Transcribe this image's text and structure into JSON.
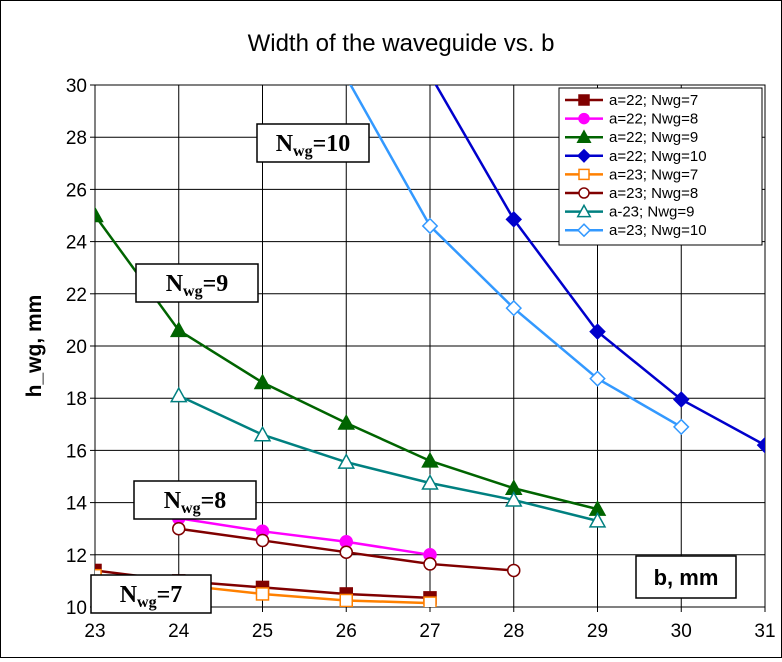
{
  "chart_data": {
    "type": "line",
    "title": "Width of the waveguide vs. b",
    "xlabel": "b, mm",
    "ylabel": "h_wg, mm",
    "xlim": [
      23,
      31
    ],
    "ylim": [
      10,
      30
    ],
    "x_ticks": [
      "23",
      "24",
      "25",
      "26",
      "27",
      "28",
      "29",
      "30",
      "31"
    ],
    "y_ticks": [
      "10",
      "12",
      "14",
      "16",
      "18",
      "20",
      "22",
      "24",
      "26",
      "28",
      "30"
    ],
    "grid": true,
    "legend_position": "top-right",
    "series": [
      {
        "name": "a=22; Nwg=7",
        "color": "#800000",
        "marker": "square",
        "filled": true,
        "x": [
          23,
          24,
          25,
          26,
          27
        ],
        "y": [
          11.4,
          11.0,
          10.75,
          10.5,
          10.35
        ]
      },
      {
        "name": "a=22; Nwg=8",
        "color": "#ff00ff",
        "marker": "circle",
        "filled": true,
        "x": [
          24,
          25,
          26,
          27
        ],
        "y": [
          13.4,
          12.9,
          12.5,
          12.0
        ]
      },
      {
        "name": "a=22; Nwg=9",
        "color": "#006400",
        "marker": "triangle",
        "filled": true,
        "x": [
          23,
          24,
          25,
          26,
          27,
          28,
          29
        ],
        "y": [
          25.0,
          20.6,
          18.6,
          17.05,
          15.6,
          14.55,
          13.75
        ]
      },
      {
        "name": "a=22; Nwg=10",
        "color": "#0000cc",
        "marker": "diamond",
        "filled": true,
        "x": [
          27,
          28,
          29,
          30,
          31
        ],
        "y": [
          30.4,
          24.85,
          20.55,
          17.95,
          16.2
        ]
      },
      {
        "name": "a=23; Nwg=7",
        "color": "#ff8000",
        "marker": "square",
        "filled": false,
        "x": [
          23,
          24,
          25,
          26,
          27
        ],
        "y": [
          11.2,
          10.85,
          10.5,
          10.25,
          10.15
        ]
      },
      {
        "name": "a=23; Nwg=8",
        "color": "#800000",
        "marker": "circle",
        "filled": false,
        "x": [
          24,
          25,
          26,
          27,
          28
        ],
        "y": [
          13.0,
          12.55,
          12.1,
          11.65,
          11.4
        ]
      },
      {
        "name": "a-23; Nwg=9",
        "color": "#008080",
        "marker": "triangle",
        "filled": false,
        "x": [
          24,
          25,
          26,
          27,
          28,
          29
        ],
        "y": [
          18.1,
          16.6,
          15.55,
          14.75,
          14.1,
          13.3
        ]
      },
      {
        "name": "a=23; Nwg=10",
        "color": "#3399ff",
        "marker": "diamond",
        "filled": false,
        "x": [
          26,
          27,
          28,
          29,
          30
        ],
        "y": [
          30.3,
          24.6,
          21.45,
          18.75,
          16.9
        ]
      }
    ],
    "annotations": [
      {
        "main": "N",
        "sub": "wg",
        "rest": "=10"
      },
      {
        "main": "N",
        "sub": "wg",
        "rest": "=9"
      },
      {
        "main": "N",
        "sub": "wg",
        "rest": "=8"
      },
      {
        "main": "N",
        "sub": "wg",
        "rest": "=7"
      }
    ]
  }
}
